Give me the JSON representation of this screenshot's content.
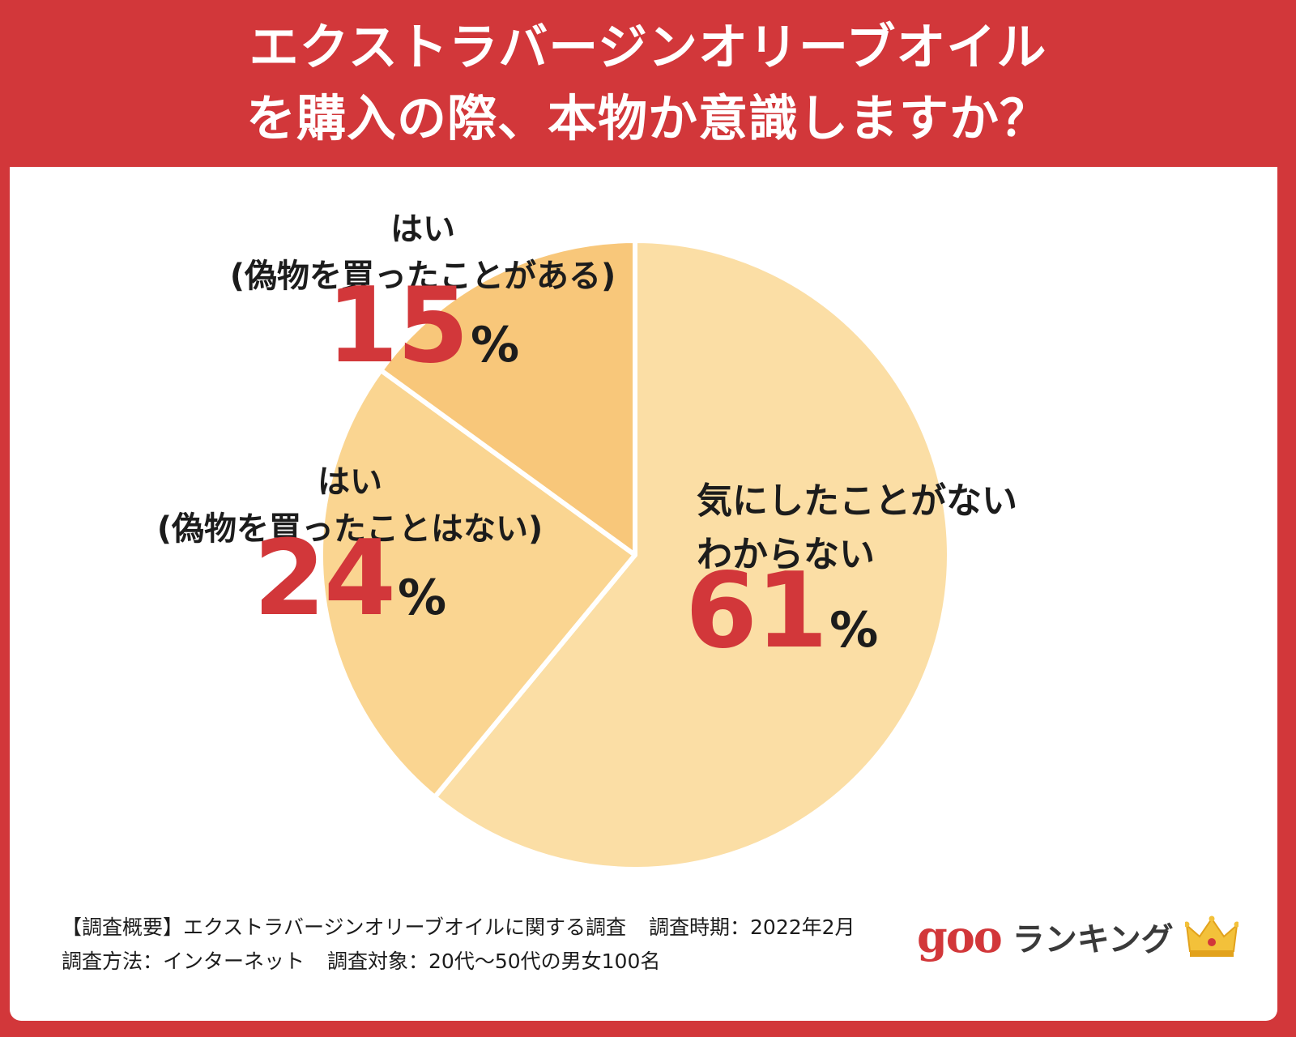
{
  "header": {
    "title_line1": "エクストラバージンオリーブオイル",
    "title_line2": "を購入の際、本物か意識しますか？"
  },
  "chart_data": {
    "type": "pie",
    "title": "エクストラバージンオリーブオイルを購入の際、本物か意識しますか？",
    "slices": [
      {
        "label_line1": "気にしたことがない",
        "label_line2": "わからない",
        "value": 61,
        "color": "#fbdea5"
      },
      {
        "label_line1": "はい",
        "label_line2": "(偽物を買ったことはない)",
        "value": 24,
        "color": "#fad591"
      },
      {
        "label_line1": "はい",
        "label_line2": "(偽物を買ったことがある)",
        "value": 15,
        "color": "#f8c77a"
      }
    ],
    "percent_sign": "%"
  },
  "footer": {
    "line1_a": "【調査概要】エクストラバージンオリーブオイルに関する調査",
    "line1_b": "調査時期：2022年2月",
    "line2_a": "調査方法：インターネット",
    "line2_b": "調査対象：20代〜50代の男女100名"
  },
  "brand": {
    "logo": "goo",
    "name": "ランキング",
    "icon": "crown-icon"
  }
}
